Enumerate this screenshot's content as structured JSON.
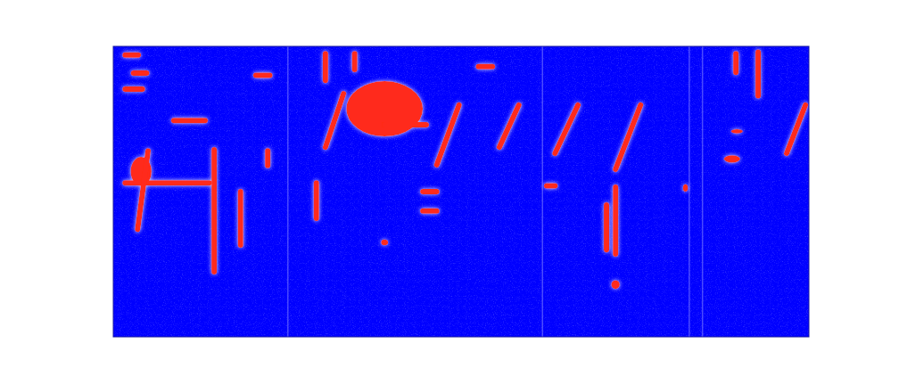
{
  "chart_data": {
    "type": "spectrogram",
    "xlim": [
      0,
      100
    ],
    "ylim": [
      0,
      100
    ],
    "tick_labels": false,
    "color": "#ff2a1a",
    "boundaries": [
      25.1,
      61.7,
      82.8,
      84.7
    ],
    "strokes": [
      {
        "x": [
          14.5,
          14.5
        ],
        "y": [
          22.4,
          64.4
        ]
      },
      {
        "x": [
          1.7,
          13.8
        ],
        "y": [
          53,
          53
        ]
      },
      {
        "x": [
          3.5,
          5
        ],
        "y": [
          37,
          64
        ]
      },
      {
        "x": [
          18.3,
          18.3
        ],
        "y": [
          31.6,
          50
        ]
      },
      {
        "x": [
          29.2,
          29.2
        ],
        "y": [
          40.8,
          53
        ]
      },
      {
        "x": [
          30.5,
          33.1
        ],
        "y": [
          65.3,
          83.7
        ]
      },
      {
        "x": [
          46.5,
          49.7
        ],
        "y": [
          59.2,
          79.8
        ]
      },
      {
        "x": [
          55.5,
          58.3
        ],
        "y": [
          65.3,
          79.8
        ]
      },
      {
        "x": [
          63.5,
          66.8
        ],
        "y": [
          63.2,
          79.8
        ]
      },
      {
        "x": [
          72.2,
          75.8
        ],
        "y": [
          57.7,
          79.8
        ]
      },
      {
        "x": [
          96.8,
          99.5
        ],
        "y": [
          63.2,
          79.8
        ]
      },
      {
        "x": [
          72.2,
          72.2
        ],
        "y": [
          28.5,
          51.5
        ]
      },
      {
        "x": [
          70.9,
          70.9
        ],
        "y": [
          30,
          45.4
        ]
      },
      {
        "x": [
          30.5,
          30.5
        ],
        "y": [
          88.3,
          97.5
        ]
      },
      {
        "x": [
          34.7,
          34.7
        ],
        "y": [
          92,
          97.5
        ]
      },
      {
        "x": [
          92.7,
          92.7
        ],
        "y": [
          83,
          98
        ]
      },
      {
        "x": [
          89.5,
          89.5
        ],
        "y": [
          91,
          97.5
        ]
      },
      {
        "x": [
          8.7,
          13.2
        ],
        "y": [
          74.5,
          74.5
        ]
      },
      {
        "x": [
          39,
          45
        ],
        "y": [
          73,
          73
        ]
      },
      {
        "x": [
          1.7,
          3.6
        ],
        "y": [
          97,
          97
        ]
      },
      {
        "x": [
          1.7,
          4.2
        ],
        "y": [
          85.3,
          85.3
        ]
      },
      {
        "x": [
          2.9,
          4.8
        ],
        "y": [
          90.8,
          90.8
        ]
      },
      {
        "x": [
          44.5,
          46.5
        ],
        "y": [
          50,
          50
        ]
      },
      {
        "x": [
          44.5,
          46.5
        ],
        "y": [
          43.3,
          43.3
        ]
      },
      {
        "x": [
          22.2,
          22.2
        ],
        "y": [
          59,
          64
        ]
      },
      {
        "x": [
          62.3,
          63.5
        ],
        "y": [
          52,
          52
        ]
      },
      {
        "x": [
          20.5,
          22.5
        ],
        "y": [
          90,
          90
        ]
      },
      {
        "x": [
          52.5,
          54.5
        ],
        "y": [
          93,
          93
        ]
      }
    ],
    "blobs": [
      {
        "x": [
          33.5,
          44.5
        ],
        "y": [
          69,
          88
        ]
      },
      {
        "x": [
          2.5,
          5.5
        ],
        "y": [
          52,
          62
        ]
      },
      {
        "x": [
          87.8,
          90.1
        ],
        "y": [
          60,
          62.5
        ]
      },
      {
        "x": [
          38.5,
          39.5
        ],
        "y": [
          31.5,
          33.5
        ]
      },
      {
        "x": [
          71.6,
          72.8
        ],
        "y": [
          16.5,
          19.5
        ]
      },
      {
        "x": [
          81.9,
          82.6
        ],
        "y": [
          50,
          52.5
        ]
      },
      {
        "x": [
          88.8,
          90.5
        ],
        "y": [
          70,
          71.5
        ]
      }
    ]
  }
}
